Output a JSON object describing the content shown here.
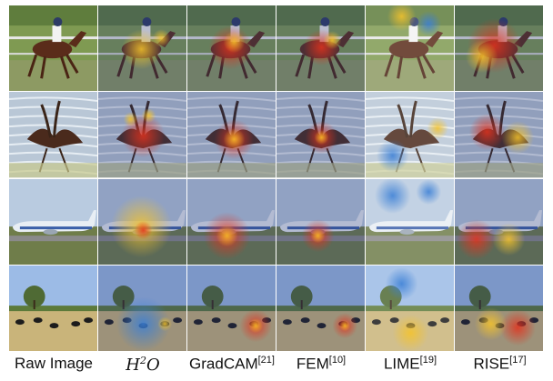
{
  "figure": {
    "columns": [
      {
        "name": "Raw Image",
        "ref": ""
      },
      {
        "name": "H2O",
        "ref": ""
      },
      {
        "name": "GradCAM",
        "ref": "[21]"
      },
      {
        "name": "FEM",
        "ref": "[10]"
      },
      {
        "name": "LIME",
        "ref": "[19]"
      },
      {
        "name": "RISE",
        "ref": "[17]"
      }
    ],
    "rows": [
      {
        "subject": "horse-racing"
      },
      {
        "subject": "bird"
      },
      {
        "subject": "airplane"
      },
      {
        "subject": "cattle-field"
      }
    ]
  },
  "colors": {
    "sky_blue": "#8fb7e8",
    "grass": "#6f8f3a",
    "heat_hot": "#e2321d",
    "heat_warm": "#f5c32a",
    "heat_cool": "#3a7fd6"
  }
}
